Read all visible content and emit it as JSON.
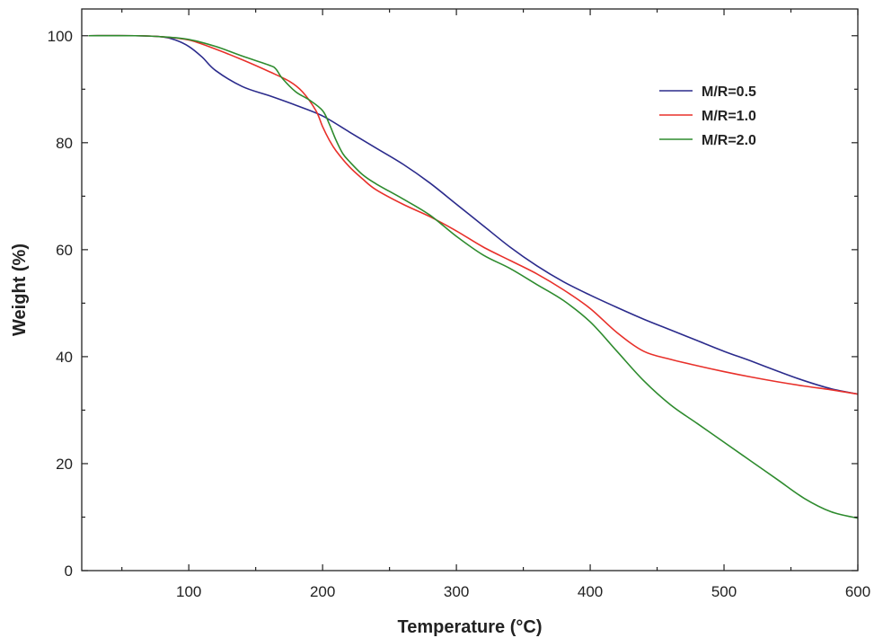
{
  "chart_data": {
    "type": "line",
    "title": "",
    "xlabel": "Temperature (°C)",
    "ylabel": "Weight (%)",
    "xlim": [
      20,
      600
    ],
    "ylim": [
      0,
      105
    ],
    "xticks": [
      100,
      200,
      300,
      400,
      500,
      600
    ],
    "yticks": [
      0,
      20,
      40,
      60,
      80,
      100
    ],
    "grid": false,
    "legend_position": "top-right",
    "series": [
      {
        "name": "M/R=0.5",
        "color": "#2b2b8c",
        "x": [
          25,
          60,
          80,
          90,
          100,
          110,
          120,
          140,
          160,
          180,
          200,
          220,
          240,
          260,
          280,
          300,
          320,
          340,
          360,
          380,
          400,
          420,
          440,
          460,
          480,
          500,
          520,
          540,
          560,
          580,
          600
        ],
        "y": [
          100,
          100,
          99.8,
          99.2,
          98,
          96,
          93.5,
          90.5,
          88.8,
          87,
          85,
          82,
          79,
          76,
          72.5,
          68.5,
          64.5,
          60.5,
          57,
          54,
          51.5,
          49.2,
          47,
          45,
          43,
          41,
          39.2,
          37.3,
          35.5,
          34,
          33
        ]
      },
      {
        "name": "M/R=1.0",
        "color": "#e8302a",
        "x": [
          25,
          60,
          80,
          100,
          120,
          140,
          160,
          175,
          185,
          195,
          200,
          205,
          210,
          220,
          230,
          240,
          260,
          280,
          300,
          320,
          340,
          360,
          380,
          400,
          420,
          440,
          460,
          480,
          500,
          520,
          540,
          560,
          580,
          600
        ],
        "y": [
          100,
          100,
          99.8,
          99.2,
          97.5,
          95.5,
          93.3,
          91.5,
          89.5,
          86,
          83,
          80.5,
          78.5,
          75.5,
          73.2,
          71.2,
          68.5,
          66.2,
          63.5,
          60.5,
          58,
          55.5,
          52.5,
          49,
          44.5,
          41,
          39.5,
          38.3,
          37.2,
          36.2,
          35.3,
          34.5,
          33.8,
          33
        ]
      },
      {
        "name": "M/R=2.0",
        "color": "#2e8b2e",
        "x": [
          25,
          60,
          80,
          100,
          120,
          140,
          160,
          165,
          170,
          180,
          190,
          200,
          205,
          210,
          215,
          220,
          230,
          240,
          260,
          280,
          300,
          320,
          340,
          360,
          380,
          400,
          420,
          440,
          460,
          480,
          500,
          520,
          540,
          560,
          580,
          600
        ],
        "y": [
          100,
          100,
          99.8,
          99.3,
          98,
          96.2,
          94.5,
          93.8,
          92,
          89.5,
          88,
          86,
          83.5,
          80.5,
          78,
          76.5,
          74,
          72.3,
          69.5,
          66.5,
          62.5,
          59,
          56.5,
          53.5,
          50.5,
          46.5,
          41,
          35.5,
          31,
          27.5,
          24,
          20.5,
          17,
          13.5,
          11,
          9.8
        ]
      }
    ]
  }
}
